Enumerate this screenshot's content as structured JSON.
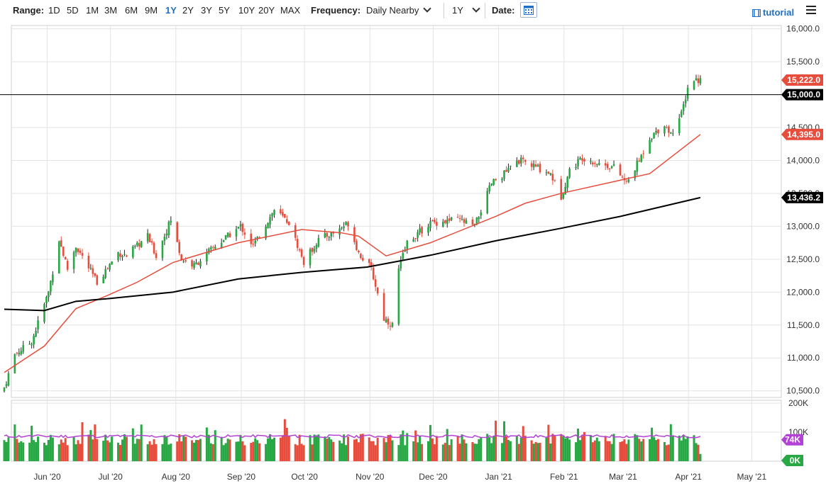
{
  "toolbar": {
    "range_label": "Range:",
    "ranges": [
      "1D",
      "5D",
      "1M",
      "3M",
      "6M",
      "9M",
      "1Y",
      "2Y",
      "3Y",
      "5Y",
      "10Y",
      "20Y",
      "MAX"
    ],
    "active_range": "1Y",
    "frequency_label": "Frequency:",
    "frequency_value": "Daily Nearby",
    "period_value": "1Y",
    "date_label": "Date:",
    "tutorial_label": "tutorial",
    "icons": [
      "calendar-icon",
      "tutorial-icon",
      "menu-icon",
      "chevron-down-icon"
    ]
  },
  "chart_data": [
    {
      "type": "candlestick",
      "panel": "price",
      "y_ticks": [
        "16,000.0",
        "15,500.0",
        "15,000.0",
        "14,500.0",
        "14,000.0",
        "13,500.0",
        "13,000.0",
        "12,500.0",
        "12,000.0",
        "11,500.0",
        "11,000.0",
        "10,500.0"
      ],
      "y_tick_values": [
        16000,
        15500,
        15000,
        14500,
        14000,
        13500,
        13000,
        12500,
        12000,
        11500,
        11000,
        10500
      ],
      "ylim": [
        10400,
        16100
      ],
      "x_labels": [
        "Jun '20",
        "Jul '20",
        "Aug '20",
        "Sep '20",
        "Oct '20",
        "Nov '20",
        "Dec '20",
        "Jan '21",
        "Feb '21",
        "Mar '21",
        "Apr '21",
        "May '21"
      ],
      "price_anchors": [
        [
          "2020-05-13",
          10550
        ],
        [
          "2020-05-18",
          11050
        ],
        [
          "2020-05-26",
          11250
        ],
        [
          "2020-06-03",
          12000
        ],
        [
          "2020-06-08",
          12800
        ],
        [
          "2020-06-12",
          12350
        ],
        [
          "2020-06-16",
          12700
        ],
        [
          "2020-06-26",
          12150
        ],
        [
          "2020-07-06",
          12600
        ],
        [
          "2020-07-10",
          12550
        ],
        [
          "2020-07-20",
          12850
        ],
        [
          "2020-07-24",
          12550
        ],
        [
          "2020-07-31",
          13100
        ],
        [
          "2020-08-05",
          12500
        ],
        [
          "2020-08-11",
          12400
        ],
        [
          "2020-08-21",
          12700
        ],
        [
          "2020-09-02",
          13000
        ],
        [
          "2020-09-08",
          12700
        ],
        [
          "2020-09-18",
          13250
        ],
        [
          "2020-09-25",
          13050
        ],
        [
          "2020-10-02",
          12450
        ],
        [
          "2020-10-09",
          12800
        ],
        [
          "2020-10-16",
          12900
        ],
        [
          "2020-10-23",
          13050
        ],
        [
          "2020-10-28",
          12600
        ],
        [
          "2020-11-03",
          12350
        ],
        [
          "2020-11-09",
          11600
        ],
        [
          "2020-11-13",
          11500
        ],
        [
          "2020-11-16",
          12350
        ],
        [
          "2020-11-20",
          12750
        ],
        [
          "2020-12-01",
          13050
        ],
        [
          "2020-12-14",
          13100
        ],
        [
          "2020-12-22",
          13000
        ],
        [
          "2020-12-30",
          13650
        ],
        [
          "2021-01-05",
          13800
        ],
        [
          "2021-01-12",
          14000
        ],
        [
          "2021-01-20",
          13900
        ],
        [
          "2021-01-27",
          13800
        ],
        [
          "2021-02-01",
          13450
        ],
        [
          "2021-02-05",
          13850
        ],
        [
          "2021-02-11",
          14050
        ],
        [
          "2021-02-19",
          13950
        ],
        [
          "2021-02-26",
          13900
        ],
        [
          "2021-03-04",
          13650
        ],
        [
          "2021-03-10",
          14000
        ],
        [
          "2021-03-15",
          14350
        ],
        [
          "2021-03-22",
          14550
        ],
        [
          "2021-03-25",
          14400
        ],
        [
          "2021-03-30",
          14700
        ],
        [
          "2021-04-02",
          15100
        ],
        [
          "2021-04-05",
          15230
        ],
        [
          "2021-04-06",
          15230
        ],
        [
          "2021-04-08",
          15222
        ]
      ],
      "series": [
        {
          "name": "Price",
          "last_value": "15,222.0",
          "color": "#e74c3c"
        },
        {
          "name": "Reference line",
          "last_value": "15,000.0",
          "color": "#000000"
        },
        {
          "name": "Moving average (red)",
          "last_value": "14,395.0",
          "color": "#e74c3c",
          "points": [
            [
              "2020-05-13",
              10780
            ],
            [
              "2020-06-01",
              11180
            ],
            [
              "2020-06-16",
              11750
            ],
            [
              "2020-07-01",
              11950
            ],
            [
              "2020-07-15",
              12150
            ],
            [
              "2020-08-01",
              12450
            ],
            [
              "2020-09-01",
              12750
            ],
            [
              "2020-10-01",
              12950
            ],
            [
              "2020-10-20",
              12900
            ],
            [
              "2020-10-28",
              12850
            ],
            [
              "2020-11-10",
              12550
            ],
            [
              "2020-12-01",
              12750
            ],
            [
              "2021-01-01",
              13150
            ],
            [
              "2021-01-15",
              13350
            ],
            [
              "2021-02-01",
              13500
            ],
            [
              "2021-03-01",
              13700
            ],
            [
              "2021-03-15",
              13800
            ],
            [
              "2021-04-08",
              14395
            ]
          ]
        },
        {
          "name": "Moving average (black)",
          "last_value": "13,436.2",
          "color": "#000000",
          "points": [
            [
              "2020-05-13",
              11740
            ],
            [
              "2020-06-01",
              11720
            ],
            [
              "2020-06-16",
              11860
            ],
            [
              "2020-07-01",
              11900
            ],
            [
              "2020-08-01",
              12000
            ],
            [
              "2020-09-01",
              12200
            ],
            [
              "2020-10-01",
              12300
            ],
            [
              "2020-11-01",
              12380
            ],
            [
              "2020-12-01",
              12560
            ],
            [
              "2021-01-01",
              12780
            ],
            [
              "2021-02-01",
              12970
            ],
            [
              "2021-03-01",
              13150
            ],
            [
              "2021-04-08",
              13436
            ]
          ]
        }
      ],
      "tags": [
        {
          "label": "15,222.0",
          "value": 15222,
          "color": "#e74c3c"
        },
        {
          "label": "15,000.0",
          "value": 15000,
          "color": "#000000"
        },
        {
          "label": "14,395.0",
          "value": 14395,
          "color": "#e74c3c"
        },
        {
          "label": "13,436.2",
          "value": 13436,
          "color": "#000000"
        }
      ],
      "up_color": "#27a844",
      "down_color": "#e74c3c"
    },
    {
      "type": "bar",
      "panel": "volume",
      "y_ticks": [
        "200K",
        "100K"
      ],
      "y_tick_values": [
        200,
        100
      ],
      "ylim": [
        0,
        210
      ],
      "tags": [
        {
          "label": "74K",
          "value": 74,
          "color": "#b341d6"
        },
        {
          "label": "0K",
          "value": 0,
          "color": "#27a844"
        }
      ]
    }
  ]
}
